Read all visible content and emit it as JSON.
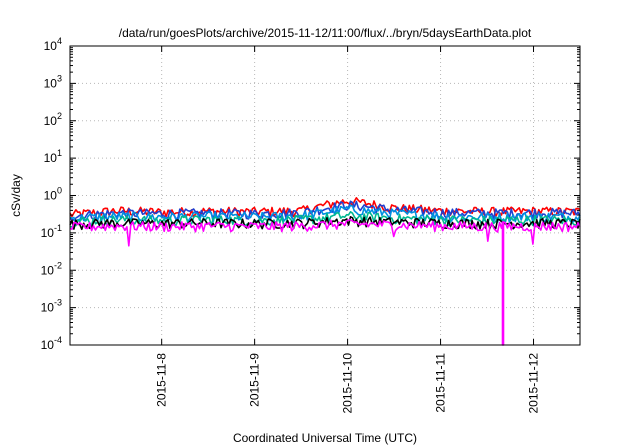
{
  "chart_data": {
    "type": "line",
    "title": "/data/run/goesPlots/archive/2015-11-12/11:00/flux/../bryn/5daysEarthData.plot",
    "xlabel": "Coordinated Universal Time (UTC)",
    "ylabel": "cSv/day",
    "yscale": "log",
    "ylim_exponents": [
      -4,
      4
    ],
    "y_ticks": [
      {
        "base": "10",
        "exp": "4"
      },
      {
        "base": "10",
        "exp": "3"
      },
      {
        "base": "10",
        "exp": "2"
      },
      {
        "base": "10",
        "exp": "1"
      },
      {
        "base": "10",
        "exp": "0"
      },
      {
        "base": "10",
        "exp": "-1"
      },
      {
        "base": "10",
        "exp": "-2"
      },
      {
        "base": "10",
        "exp": "-3"
      },
      {
        "base": "10",
        "exp": "-4"
      }
    ],
    "x_range_days": [
      "2015-11-07 00:20",
      "2015-11-12 12:00"
    ],
    "x_ticks": [
      "2015-11-8",
      "2015-11-9",
      "2015-11-10",
      "2015-11-11",
      "2015-11-12"
    ],
    "grid": true,
    "legend": "none",
    "series": [
      {
        "color": "#ff0000",
        "base_values": [
          0.3,
          0.38,
          0.35,
          0.37,
          0.36,
          0.38,
          0.7,
          0.45,
          0.38,
          0.36,
          0.37,
          0.36
        ],
        "spikes": [],
        "min_dip": []
      },
      {
        "color": "#2040d0",
        "base_values": [
          0.28,
          0.33,
          0.32,
          0.33,
          0.32,
          0.34,
          0.55,
          0.4,
          0.34,
          0.33,
          0.34,
          0.33
        ],
        "spikes": [],
        "min_dip": []
      },
      {
        "color": "#0090e0",
        "base_values": [
          0.24,
          0.27,
          0.26,
          0.27,
          0.26,
          0.28,
          0.42,
          0.32,
          0.27,
          0.26,
          0.27,
          0.26
        ],
        "spikes": [],
        "min_dip": []
      },
      {
        "color": "#00b890",
        "base_values": [
          0.2,
          0.22,
          0.21,
          0.22,
          0.21,
          0.22,
          0.28,
          0.24,
          0.22,
          0.21,
          0.22,
          0.21
        ],
        "spikes": [],
        "min_dip": []
      },
      {
        "color": "#000000",
        "base_values": [
          0.17,
          0.18,
          0.175,
          0.18,
          0.175,
          0.18,
          0.21,
          0.19,
          0.18,
          0.175,
          0.18,
          0.175
        ],
        "spikes": [],
        "min_dip": []
      },
      {
        "color": "#ff00ff",
        "base_values": [
          0.14,
          0.15,
          0.145,
          0.15,
          0.145,
          0.15,
          0.17,
          0.16,
          0.15,
          0.145,
          0.15,
          0.145
        ],
        "spikes": [
          [
            "2015-11-07 15:30",
            0.045
          ],
          [
            "2015-11-10 12:00",
            0.08
          ],
          [
            "2015-11-11 12:00",
            0.06
          ],
          [
            "2015-11-12 00:00",
            0.05
          ]
        ],
        "min_dip": [
          [
            "2015-11-11 16:00",
            0.0001
          ]
        ]
      }
    ]
  }
}
